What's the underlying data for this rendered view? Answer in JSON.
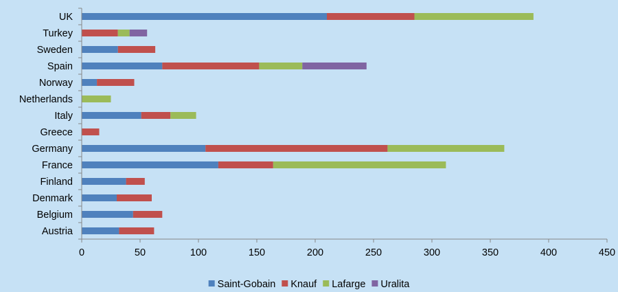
{
  "chart_data": {
    "type": "bar",
    "orientation": "horizontal",
    "stacked": true,
    "title": "",
    "xlabel": "",
    "ylabel": "",
    "categories": [
      "UK",
      "Turkey",
      "Sweden",
      "Spain",
      "Norway",
      "Netherlands",
      "Italy",
      "Greece",
      "Germany",
      "France",
      "Finland",
      "Denmark",
      "Belgium",
      "Austria"
    ],
    "series": [
      {
        "name": "Saint-Gobain",
        "color": "#4f81bd",
        "values": [
          210,
          0,
          31,
          69,
          13,
          0,
          51,
          0,
          106,
          117,
          38,
          30,
          44,
          32
        ]
      },
      {
        "name": "Knauf",
        "color": "#c0504d",
        "values": [
          75,
          31,
          32,
          83,
          32,
          0,
          25,
          15,
          156,
          47,
          16,
          30,
          25,
          30
        ]
      },
      {
        "name": "Lafarge",
        "color": "#9bbb59",
        "values": [
          102,
          10,
          0,
          37,
          0,
          25,
          22,
          0,
          100,
          148,
          0,
          0,
          0,
          0
        ]
      },
      {
        "name": "Uralita",
        "color": "#8064a2",
        "values": [
          0,
          15,
          0,
          55,
          0,
          0,
          0,
          0,
          0,
          0,
          0,
          0,
          0,
          0
        ]
      }
    ],
    "xlim": [
      0,
      450
    ],
    "xticks": [
      0,
      50,
      100,
      150,
      200,
      250,
      300,
      350,
      400,
      450
    ],
    "grid": false,
    "legend_position": "bottom"
  }
}
